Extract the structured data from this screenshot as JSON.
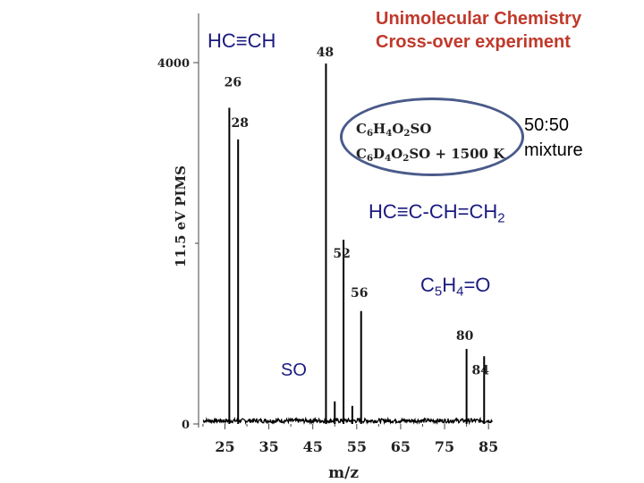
{
  "title": {
    "line1": "Unimolecular Chemistry",
    "line2": "Cross-over experiment"
  },
  "annotations": {
    "acetylene": "HC≡CH",
    "vinylacetylene": {
      "main": "HC≡C-CH=CH",
      "sub": "2"
    },
    "cyclopentadienone": {
      "c": "C",
      "c_sub": "5",
      "h": "H",
      "h_sub": "4",
      "rest": "=O"
    },
    "so": "SO",
    "mixture_line1": "50:50",
    "mixture_line2": "mixture",
    "formula_line1": {
      "c": "C",
      "c_sub": "6",
      "h": "H",
      "h_sub": "4",
      "o": "O",
      "o_sub": "2",
      "rest": "SO"
    },
    "formula_line2": {
      "c": "C",
      "c_sub": "6",
      "d": "D",
      "d_sub": "4",
      "o": "O",
      "o_sub": "2",
      "rest": "SO + 1500 K"
    }
  },
  "colors": {
    "title": "#c0392b",
    "annotation": "#1a1a80",
    "oval": "#4a5a8a",
    "trace": "#000000"
  },
  "chart_data": {
    "type": "line",
    "xlabel": "m/z",
    "ylabel": "11.5 eV PIMS",
    "xlim": [
      19,
      87
    ],
    "ylim": [
      0,
      4000
    ],
    "x_ticks": [
      25,
      35,
      45,
      55,
      65,
      75,
      85
    ],
    "y_ticks": [
      {
        "value": 0,
        "label": "0"
      },
      {
        "value": 4000,
        "label": "4000"
      }
    ],
    "peaks": [
      {
        "mz": 26,
        "intensity": 3500,
        "label": "26"
      },
      {
        "mz": 28,
        "intensity": 3150,
        "label": "28"
      },
      {
        "mz": 48,
        "intensity": 3990,
        "label": "48"
      },
      {
        "mz": 50,
        "intensity": 250,
        "label": ""
      },
      {
        "mz": 52,
        "intensity": 2040,
        "label": "52"
      },
      {
        "mz": 54,
        "intensity": 200,
        "label": ""
      },
      {
        "mz": 56,
        "intensity": 1250,
        "label": "56"
      },
      {
        "mz": 80,
        "intensity": 830,
        "label": "80"
      },
      {
        "mz": 84,
        "intensity": 750,
        "label": "84"
      }
    ],
    "baseline_noise": 40
  }
}
